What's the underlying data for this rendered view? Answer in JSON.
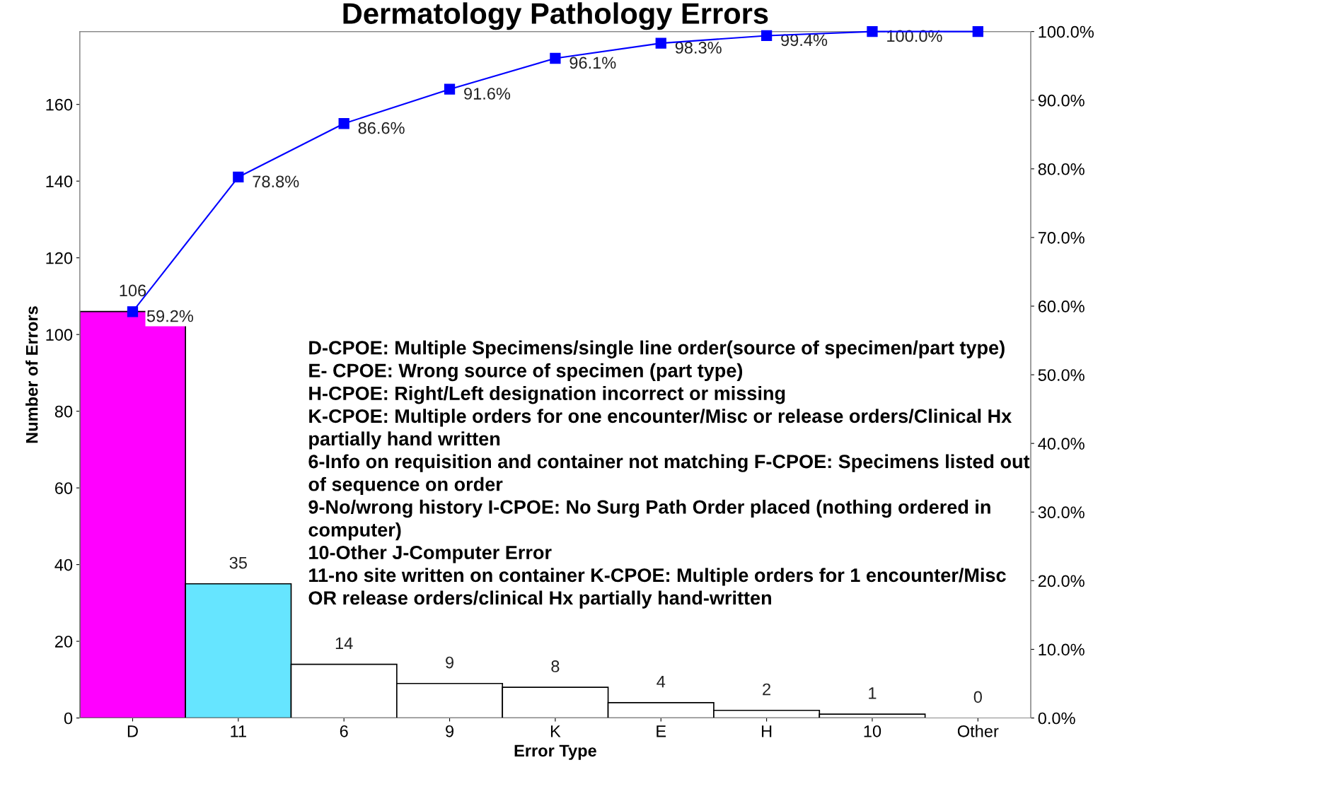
{
  "chart_data": {
    "type": "bar",
    "title": "Dermatology Pathology Errors",
    "xlabel": "Error Type",
    "ylabel": "Number of Errors",
    "categories": [
      "D",
      "11",
      "6",
      "9",
      "K",
      "E",
      "H",
      "10",
      "Other"
    ],
    "ylim": [
      0,
      179
    ],
    "yticks": [
      0,
      20,
      40,
      60,
      80,
      100,
      120,
      140,
      160
    ],
    "y2lim": [
      0,
      100
    ],
    "y2ticks": [
      {
        "value": 0,
        "label": "0.0%"
      },
      {
        "value": 10,
        "label": "10.0%"
      },
      {
        "value": 20,
        "label": "20.0%"
      },
      {
        "value": 30,
        "label": "30.0%"
      },
      {
        "value": 40,
        "label": "40.0%"
      },
      {
        "value": 50,
        "label": "50.0%"
      },
      {
        "value": 60,
        "label": "60.0%"
      },
      {
        "value": 70,
        "label": "70.0%"
      },
      {
        "value": 80,
        "label": "80.0%"
      },
      {
        "value": 90,
        "label": "90.0%"
      },
      {
        "value": 100,
        "label": "100.0%"
      }
    ],
    "grid": false,
    "legend": false,
    "data_labels": true,
    "series": [
      {
        "values": [
          106,
          35,
          14,
          9,
          8,
          4,
          2,
          1,
          0
        ],
        "colors": [
          "#ff00ff",
          "#66e5ff",
          "#ffffff",
          "#ffffff",
          "#ffffff",
          "#ffffff",
          "#ffffff",
          "#ffffff",
          "#ffffff"
        ]
      },
      {
        "type": "line",
        "axis": "y2",
        "color": "#0000ff",
        "marker": "square",
        "line_style": "solid",
        "values": [
          59.2,
          78.8,
          86.6,
          91.6,
          96.1,
          98.3,
          99.4,
          100.0,
          100.0
        ],
        "value_labels": [
          "59.2%",
          "78.8%",
          "86.6%",
          "91.6%",
          "96.1%",
          "98.3%",
          "99.4%",
          "100.0%",
          null
        ]
      }
    ],
    "annotations": [
      "D-CPOE: Multiple Specimens/single line order(source of specimen/part type)\nE- CPOE: Wrong source of specimen (part type)\nH-CPOE: Right/Left designation incorrect or missing\nK-CPOE: Multiple orders for one encounter/Misc or release orders/Clinical Hx\npartially hand written\n6-Info on requisition and container not matching F-CPOE: Specimens listed out\nof sequence on order\n9-No/wrong history I-CPOE: No Surg Path Order placed (nothing ordered in\ncomputer)\n10-Other J-Computer Error\n11-no site written on container K-CPOE: Multiple orders for 1 encounter/Misc\nOR release orders/clinical Hx partially hand-written"
    ]
  }
}
